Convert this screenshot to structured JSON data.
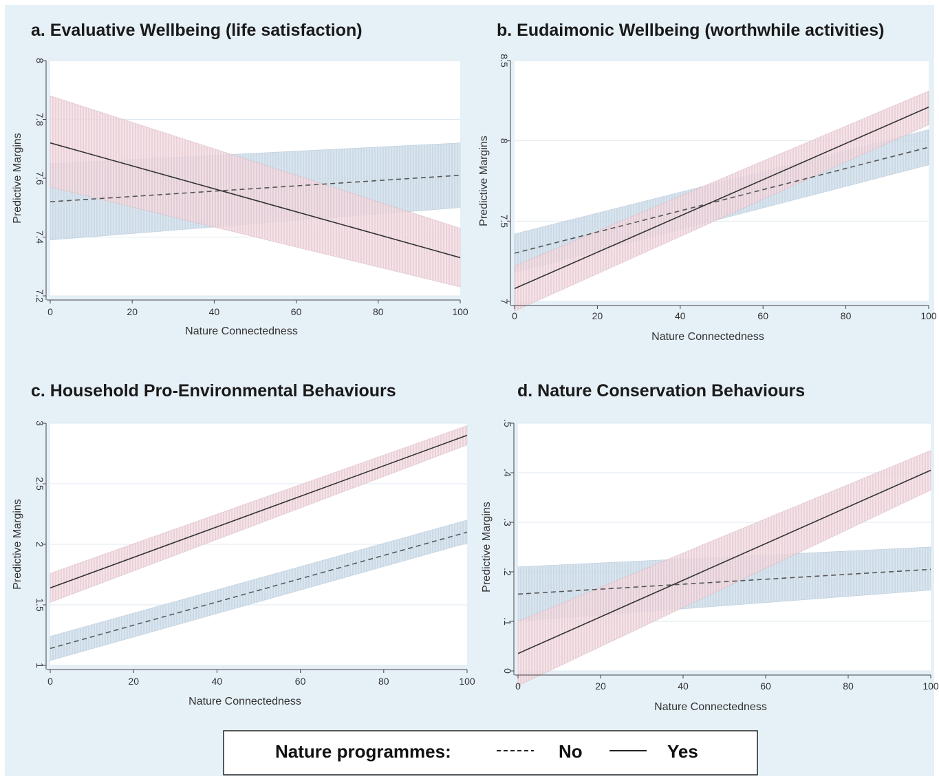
{
  "colors": {
    "figure_background": "#e6f0f7",
    "plot_background": "#ffffff",
    "gridline": "#dde8f0",
    "no_line": "#555555",
    "yes_line": "#333333",
    "no_ci_fill": "#d3e1ed",
    "no_ci_hatch": "#b3c6d8",
    "yes_ci_fill": "#f4dfe4",
    "yes_ci_hatch": "#d9b7c1"
  },
  "legend": {
    "title": "Nature programmes:",
    "no_label": "No",
    "yes_label": "Yes"
  },
  "chart_data": [
    {
      "type": "line",
      "title": "a. Evaluative Wellbeing (life satisfaction)",
      "xlabel": "Nature Connectedness",
      "ylabel": "Predictive Margins",
      "xlim": [
        0,
        100
      ],
      "ylim": [
        7.2,
        8
      ],
      "xticks": [
        "0",
        "20",
        "40",
        "60",
        "80",
        "100"
      ],
      "yticks": [
        "7.2",
        "7.4",
        "7.6",
        "7.8",
        "8"
      ],
      "grid": true,
      "series": [
        {
          "name": "No",
          "style": "dashed",
          "x": [
            0,
            100
          ],
          "y": [
            7.52,
            7.61
          ],
          "ci_low": [
            7.39,
            7.5
          ],
          "ci_high": [
            7.65,
            7.72
          ]
        },
        {
          "name": "Yes",
          "style": "solid",
          "x": [
            0,
            100
          ],
          "y": [
            7.72,
            7.33
          ],
          "ci_low": [
            7.57,
            7.23
          ],
          "ci_high": [
            7.88,
            7.43
          ]
        }
      ]
    },
    {
      "type": "line",
      "title": "b. Eudaimonic Wellbeing (worthwhile activities)",
      "xlabel": "Nature Connectedness",
      "ylabel": "Predictive Margins",
      "xlim": [
        0,
        100
      ],
      "ylim": [
        7,
        8.5
      ],
      "xticks": [
        "0",
        "20",
        "40",
        "60",
        "80",
        "100"
      ],
      "yticks": [
        "7",
        "7.5",
        "8",
        "8.5"
      ],
      "grid": true,
      "series": [
        {
          "name": "No",
          "style": "dashed",
          "x": [
            0,
            100
          ],
          "y": [
            7.3,
            7.96
          ],
          "ci_low": [
            7.18,
            7.85
          ],
          "ci_high": [
            7.42,
            8.07
          ]
        },
        {
          "name": "Yes",
          "style": "solid",
          "x": [
            0,
            100
          ],
          "y": [
            7.08,
            8.21
          ],
          "ci_low": [
            6.94,
            8.1
          ],
          "ci_high": [
            7.22,
            8.31
          ]
        }
      ]
    },
    {
      "type": "line",
      "title": "c. Household Pro-Environmental Behaviours",
      "xlabel": "Nature Connectedness",
      "ylabel": "Predictive Margins",
      "xlim": [
        0,
        100
      ],
      "ylim": [
        1,
        3
      ],
      "xticks": [
        "0",
        "20",
        "40",
        "60",
        "80",
        "100"
      ],
      "yticks": [
        "1",
        "1.5",
        "2",
        "2.5",
        "3"
      ],
      "grid": true,
      "series": [
        {
          "name": "No",
          "style": "dashed",
          "x": [
            0,
            100
          ],
          "y": [
            1.14,
            2.1
          ],
          "ci_low": [
            1.04,
            2.01
          ],
          "ci_high": [
            1.24,
            2.2
          ]
        },
        {
          "name": "Yes",
          "style": "solid",
          "x": [
            0,
            100
          ],
          "y": [
            1.64,
            2.9
          ],
          "ci_low": [
            1.52,
            2.82
          ],
          "ci_high": [
            1.76,
            2.98
          ]
        }
      ]
    },
    {
      "type": "line",
      "title": "d. Nature Conservation Behaviours",
      "xlabel": "Nature Connectedness",
      "ylabel": "Predictive Margins",
      "xlim": [
        0,
        100
      ],
      "ylim": [
        0,
        0.5
      ],
      "xticks": [
        "0",
        "20",
        "40",
        "60",
        "80",
        "100"
      ],
      "yticks": [
        "0",
        ".1",
        ".2",
        ".3",
        ".4",
        ".5"
      ],
      "grid": true,
      "series": [
        {
          "name": "No",
          "style": "dashed",
          "x": [
            0,
            100
          ],
          "y": [
            0.155,
            0.205
          ],
          "ci_low": [
            0.1,
            0.163
          ],
          "ci_high": [
            0.21,
            0.25
          ]
        },
        {
          "name": "Yes",
          "style": "solid",
          "x": [
            0,
            100
          ],
          "y": [
            0.035,
            0.405
          ],
          "ci_low": [
            -0.03,
            0.365
          ],
          "ci_high": [
            0.1,
            0.445
          ]
        }
      ]
    }
  ]
}
